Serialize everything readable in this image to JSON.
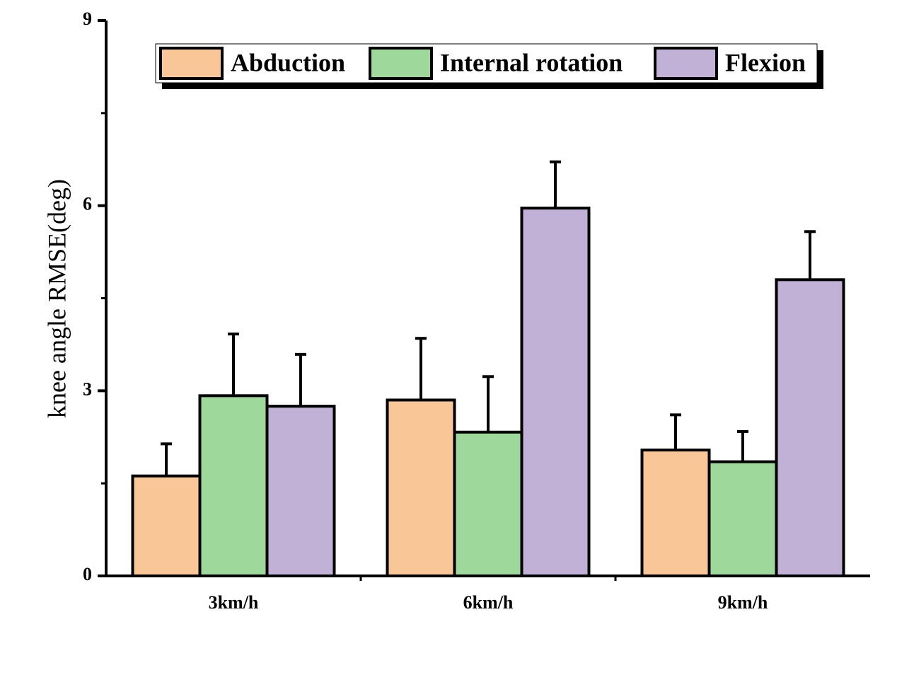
{
  "chart_data": {
    "type": "bar",
    "y_label": "knee angle RMSE(deg)",
    "categories": [
      "3km/h",
      "6km/h",
      "9km/h"
    ],
    "series": [
      {
        "name": "Abduction",
        "color": "#f9c797",
        "values": [
          1.62,
          2.85,
          2.04
        ],
        "errors": [
          0.52,
          1.0,
          0.57
        ]
      },
      {
        "name": "Internal rotation",
        "color": "#9ed89b",
        "values": [
          2.92,
          2.33,
          1.85
        ],
        "errors": [
          1.0,
          0.9,
          0.49
        ]
      },
      {
        "name": "Flexion",
        "color": "#c2b1d6",
        "values": [
          2.75,
          5.96,
          4.8
        ],
        "errors": [
          0.84,
          0.75,
          0.78
        ]
      }
    ],
    "ylim": [
      0,
      9
    ],
    "yticks": [
      0,
      3,
      6,
      9
    ],
    "legend": "top"
  }
}
